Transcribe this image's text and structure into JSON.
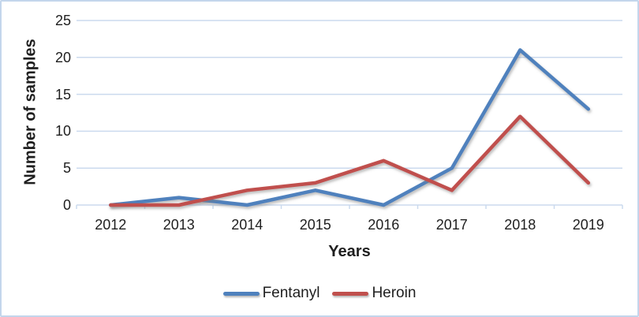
{
  "chart_data": {
    "type": "line",
    "title": "",
    "categories": [
      "2012",
      "2013",
      "2014",
      "2015",
      "2016",
      "2017",
      "2018",
      "2019"
    ],
    "series": [
      {
        "name": "Fentanyl",
        "color": "#4F81BD",
        "values": [
          0,
          1,
          0,
          2,
          0,
          5,
          21,
          13
        ]
      },
      {
        "name": "Heroin",
        "color": "#C0504D",
        "values": [
          0,
          0,
          2,
          3,
          6,
          2,
          12,
          3
        ]
      }
    ],
    "xlabel": "Years",
    "ylabel": "Number of samples",
    "ylim": [
      0,
      25
    ],
    "y_ticks": [
      0,
      5,
      10,
      15,
      20,
      25
    ],
    "grid": true,
    "legend_position": "bottom"
  },
  "colors": {
    "fentanyl_line": "#4F81BD",
    "heroin_line": "#C0504D",
    "gridline": "#CBDAEE",
    "axis_line": "#CBDAEE",
    "frame_border": "#C3D6EC",
    "text": "#1f1f1f",
    "background": "#ffffff"
  }
}
